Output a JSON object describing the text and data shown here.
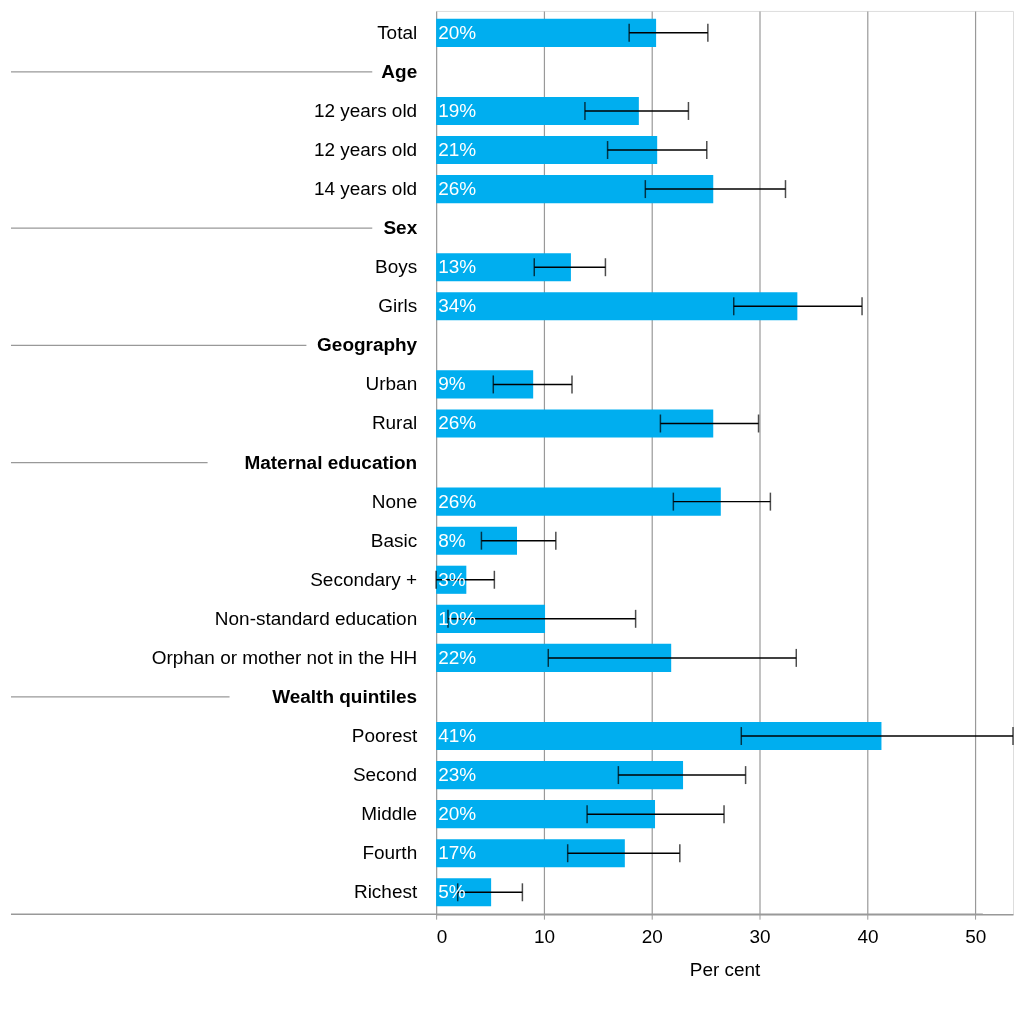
{
  "chart_data": {
    "type": "bar",
    "orientation": "horizontal",
    "xlabel": "Per cent",
    "categories": [
      "Total",
      "Age",
      "12 years old",
      "12 years old",
      "14 years old",
      "Sex",
      "Boys",
      "Girls",
      "Geography",
      "Urban",
      "Rural",
      "Maternal education",
      "None",
      "Basic",
      "Secondary +",
      "Non-standard education",
      "Orphan or mother not in the HH",
      "Wealth quintiles",
      "Poorest",
      "Second",
      "Middle",
      "Fourth",
      "Richest"
    ],
    "values": [
      20.4,
      null,
      18.8,
      20.5,
      25.7,
      null,
      12.5,
      33.5,
      null,
      9.0,
      25.7,
      null,
      26.4,
      7.5,
      2.8,
      10.1,
      21.8,
      null,
      41.3,
      22.9,
      20.3,
      17.5,
      5.1
    ],
    "errors": [
      [
        17.9,
        25.2
      ],
      null,
      [
        13.8,
        23.4
      ],
      [
        15.9,
        25.1
      ],
      [
        19.4,
        32.4
      ],
      null,
      [
        9.1,
        15.7
      ],
      [
        27.6,
        39.5
      ],
      null,
      [
        5.3,
        12.6
      ],
      [
        20.8,
        29.9
      ],
      null,
      [
        22.0,
        31.0
      ],
      [
        4.2,
        11.1
      ],
      [
        0,
        5.4
      ],
      [
        1.1,
        18.5
      ],
      [
        10.4,
        33.4
      ],
      null,
      [
        28.3,
        53.5
      ],
      [
        16.9,
        28.7
      ],
      [
        14.0,
        26.7
      ],
      [
        12.2,
        22.6
      ],
      [
        2.0,
        8.0
      ]
    ],
    "value_labels": [
      "20%",
      null,
      "19%",
      "21%",
      "26%",
      null,
      "13%",
      "34%",
      null,
      "9%",
      "26%",
      null,
      "26%",
      "8%",
      "3%",
      "10%",
      "22%",
      null,
      "41%",
      "23%",
      "20%",
      "17%",
      "5%"
    ],
    "color": "#00aeef",
    "xlim": [
      0,
      53.5
    ],
    "xticks": [
      0,
      10,
      20,
      30,
      40,
      50
    ],
    "grid": "x"
  }
}
